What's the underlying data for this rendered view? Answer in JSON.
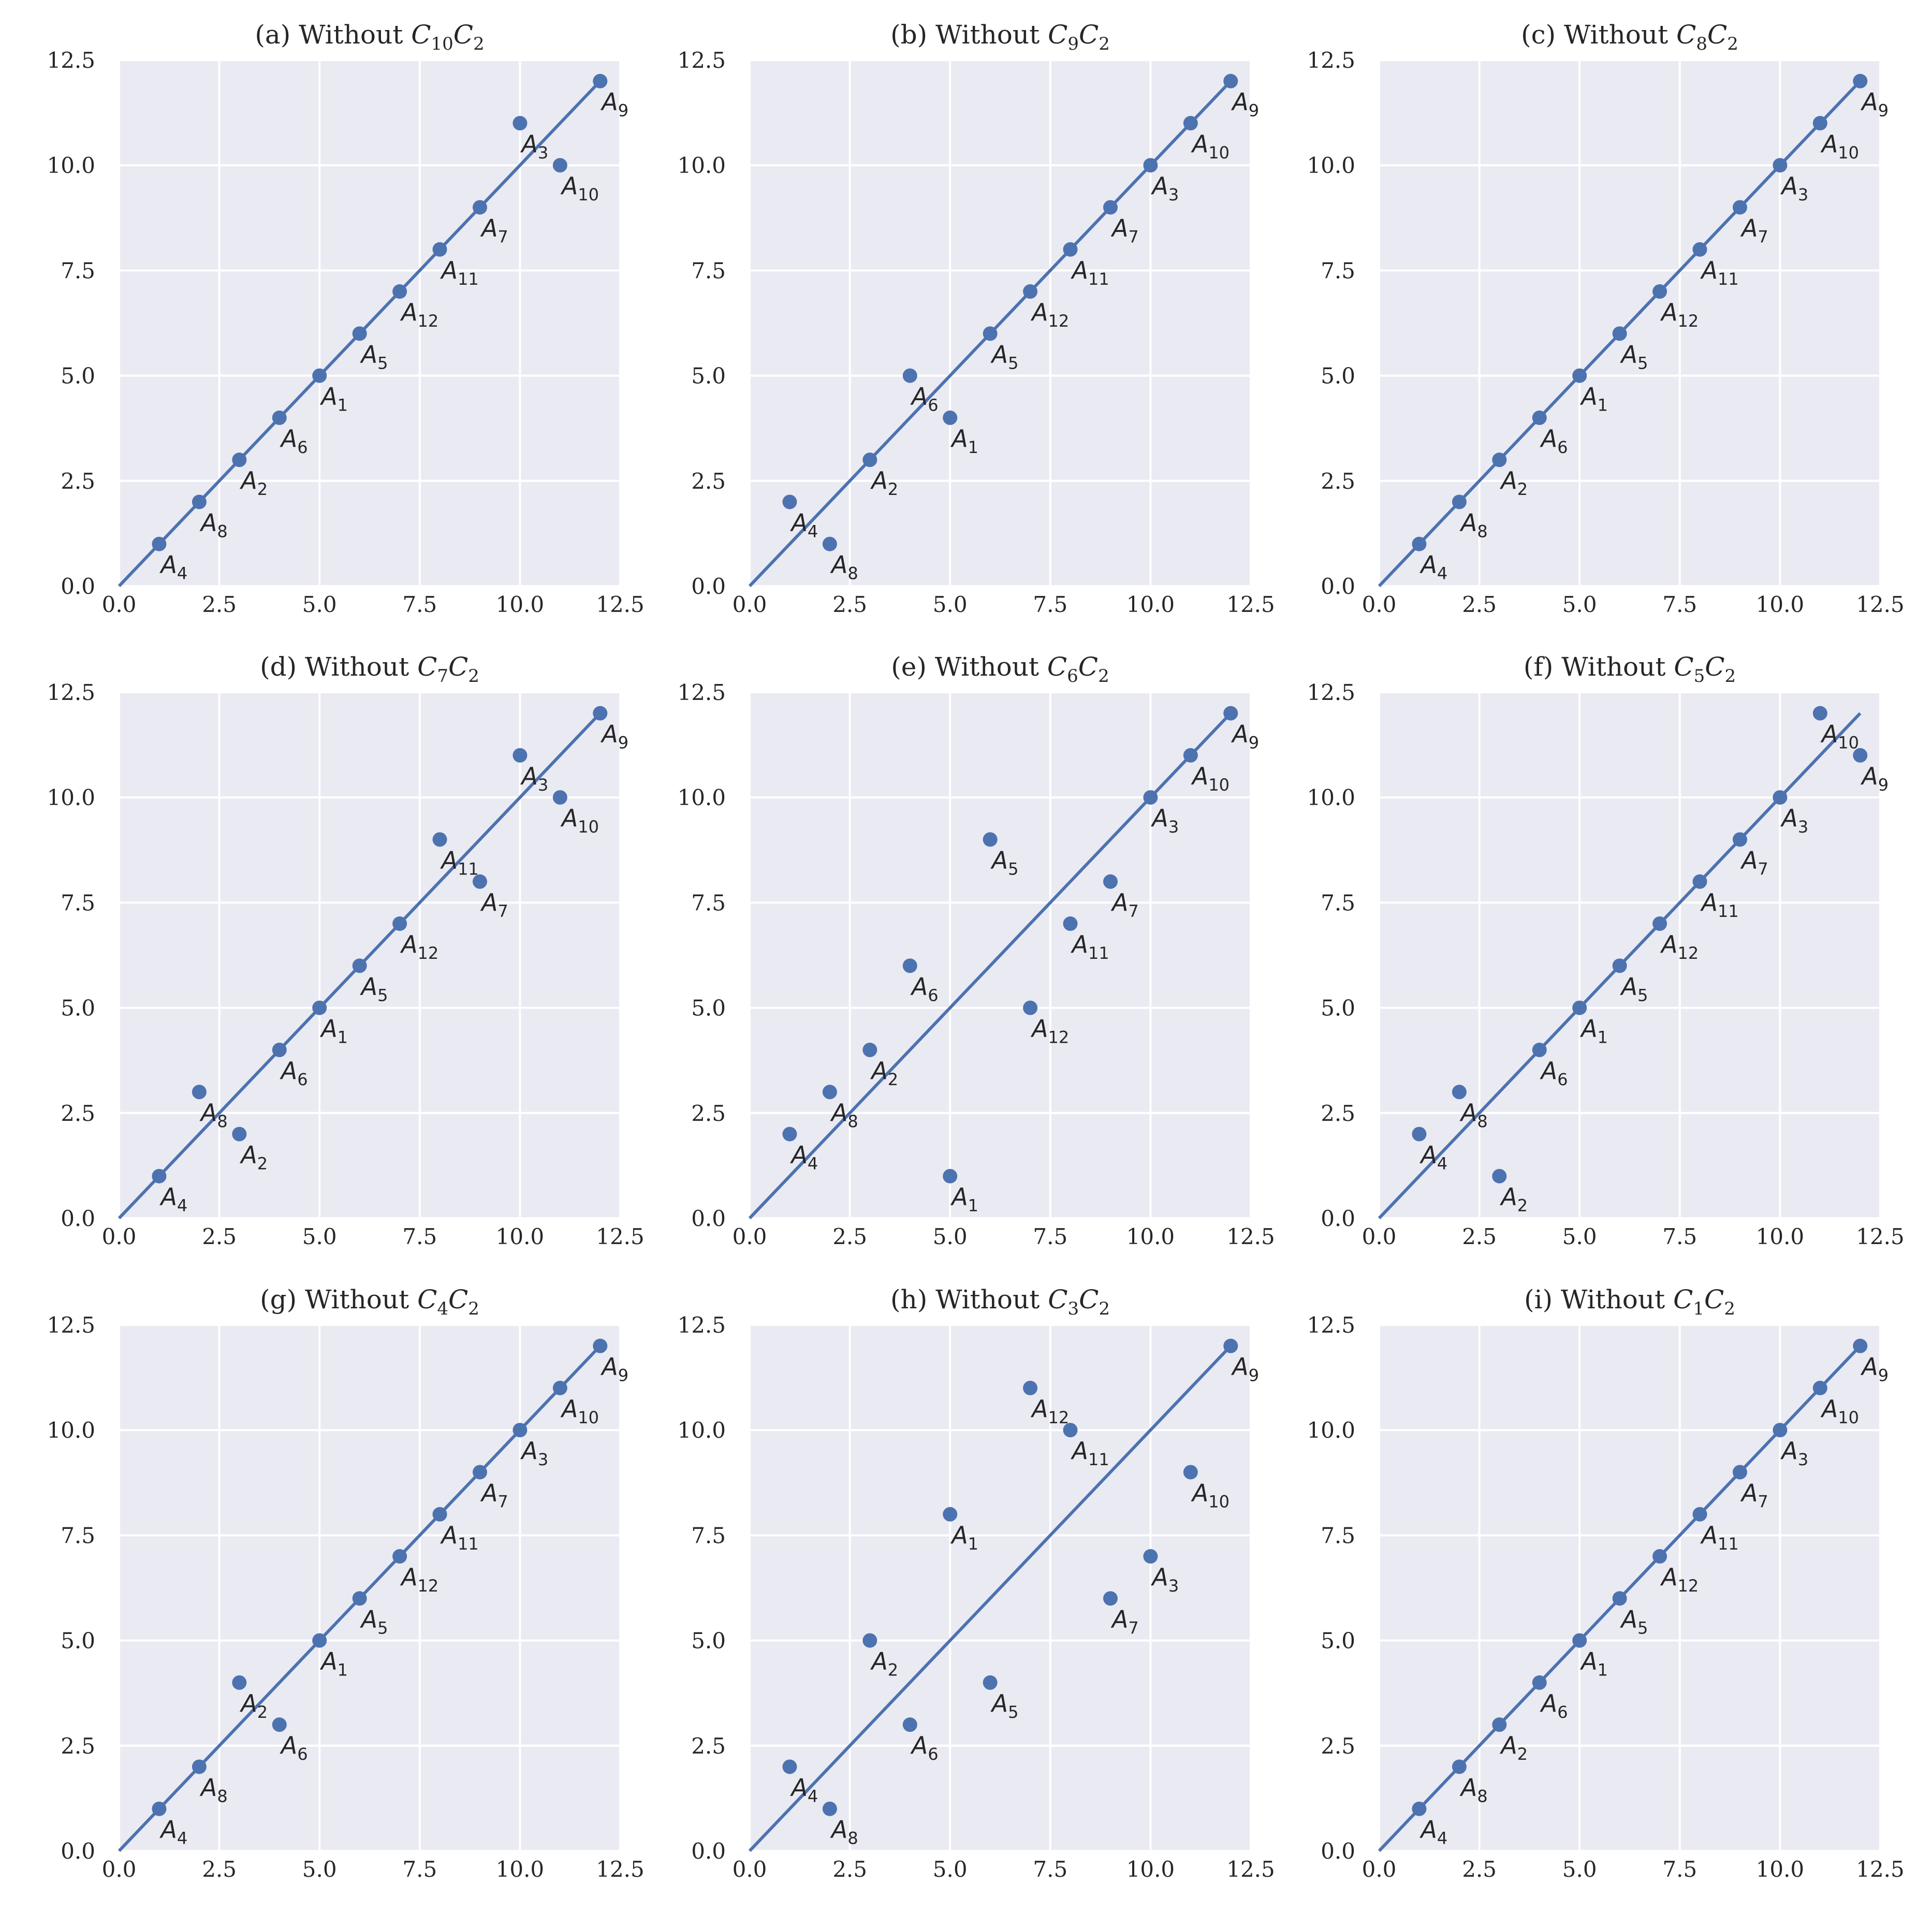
{
  "figure": {
    "panel_count": 9,
    "colors": {
      "plot_background": "#EAEAF2",
      "grid": "#FFFFFF",
      "marker": "#4C72B0",
      "line": "#4C72B0",
      "text": "#262626"
    }
  },
  "chart_data": [
    {
      "type": "scatter",
      "title": {
        "prefix": "(a) Without ",
        "var1": "C",
        "sub1": "10",
        "var2": "C",
        "sub2": "2"
      },
      "xlim": [
        0,
        12.5
      ],
      "ylim": [
        0,
        12.5
      ],
      "xticks": [
        "0.0",
        "2.5",
        "5.0",
        "7.5",
        "10.0",
        "12.5"
      ],
      "yticks": [
        "0.0",
        "2.5",
        "5.0",
        "7.5",
        "10.0",
        "12.5"
      ],
      "grid": true,
      "reference_line": {
        "from": [
          0,
          0
        ],
        "to": [
          12,
          12
        ]
      },
      "points": [
        {
          "label": "A",
          "sub": "4",
          "x": 1,
          "y": 1
        },
        {
          "label": "A",
          "sub": "8",
          "x": 2,
          "y": 2
        },
        {
          "label": "A",
          "sub": "2",
          "x": 3,
          "y": 3
        },
        {
          "label": "A",
          "sub": "6",
          "x": 4,
          "y": 4
        },
        {
          "label": "A",
          "sub": "1",
          "x": 5,
          "y": 5
        },
        {
          "label": "A",
          "sub": "5",
          "x": 6,
          "y": 6
        },
        {
          "label": "A",
          "sub": "12",
          "x": 7,
          "y": 7
        },
        {
          "label": "A",
          "sub": "11",
          "x": 8,
          "y": 8
        },
        {
          "label": "A",
          "sub": "7",
          "x": 9,
          "y": 9
        },
        {
          "label": "A",
          "sub": "3",
          "x": 10,
          "y": 11
        },
        {
          "label": "A",
          "sub": "10",
          "x": 11,
          "y": 10
        },
        {
          "label": "A",
          "sub": "9",
          "x": 12,
          "y": 12
        }
      ]
    },
    {
      "type": "scatter",
      "title": {
        "prefix": "(b) Without ",
        "var1": "C",
        "sub1": "9",
        "var2": "C",
        "sub2": "2"
      },
      "xlim": [
        0,
        12.5
      ],
      "ylim": [
        0,
        12.5
      ],
      "xticks": [
        "0.0",
        "2.5",
        "5.0",
        "7.5",
        "10.0",
        "12.5"
      ],
      "yticks": [
        "0.0",
        "2.5",
        "5.0",
        "7.5",
        "10.0",
        "12.5"
      ],
      "grid": true,
      "reference_line": {
        "from": [
          0,
          0
        ],
        "to": [
          12,
          12
        ]
      },
      "points": [
        {
          "label": "A",
          "sub": "4",
          "x": 1,
          "y": 2
        },
        {
          "label": "A",
          "sub": "8",
          "x": 2,
          "y": 1
        },
        {
          "label": "A",
          "sub": "2",
          "x": 3,
          "y": 3
        },
        {
          "label": "A",
          "sub": "6",
          "x": 4,
          "y": 5
        },
        {
          "label": "A",
          "sub": "1",
          "x": 5,
          "y": 4
        },
        {
          "label": "A",
          "sub": "5",
          "x": 6,
          "y": 6
        },
        {
          "label": "A",
          "sub": "12",
          "x": 7,
          "y": 7
        },
        {
          "label": "A",
          "sub": "11",
          "x": 8,
          "y": 8
        },
        {
          "label": "A",
          "sub": "7",
          "x": 9,
          "y": 9
        },
        {
          "label": "A",
          "sub": "3",
          "x": 10,
          "y": 10
        },
        {
          "label": "A",
          "sub": "10",
          "x": 11,
          "y": 11
        },
        {
          "label": "A",
          "sub": "9",
          "x": 12,
          "y": 12
        }
      ]
    },
    {
      "type": "scatter",
      "title": {
        "prefix": "(c) Without ",
        "var1": "C",
        "sub1": "8",
        "var2": "C",
        "sub2": "2"
      },
      "xlim": [
        0,
        12.5
      ],
      "ylim": [
        0,
        12.5
      ],
      "xticks": [
        "0.0",
        "2.5",
        "5.0",
        "7.5",
        "10.0",
        "12.5"
      ],
      "yticks": [
        "0.0",
        "2.5",
        "5.0",
        "7.5",
        "10.0",
        "12.5"
      ],
      "grid": true,
      "reference_line": {
        "from": [
          0,
          0
        ],
        "to": [
          12,
          12
        ]
      },
      "points": [
        {
          "label": "A",
          "sub": "4",
          "x": 1,
          "y": 1
        },
        {
          "label": "A",
          "sub": "8",
          "x": 2,
          "y": 2
        },
        {
          "label": "A",
          "sub": "2",
          "x": 3,
          "y": 3
        },
        {
          "label": "A",
          "sub": "6",
          "x": 4,
          "y": 4
        },
        {
          "label": "A",
          "sub": "1",
          "x": 5,
          "y": 5
        },
        {
          "label": "A",
          "sub": "5",
          "x": 6,
          "y": 6
        },
        {
          "label": "A",
          "sub": "12",
          "x": 7,
          "y": 7
        },
        {
          "label": "A",
          "sub": "11",
          "x": 8,
          "y": 8
        },
        {
          "label": "A",
          "sub": "7",
          "x": 9,
          "y": 9
        },
        {
          "label": "A",
          "sub": "3",
          "x": 10,
          "y": 10
        },
        {
          "label": "A",
          "sub": "10",
          "x": 11,
          "y": 11
        },
        {
          "label": "A",
          "sub": "9",
          "x": 12,
          "y": 12
        }
      ]
    },
    {
      "type": "scatter",
      "title": {
        "prefix": "(d) Without ",
        "var1": "C",
        "sub1": "7",
        "var2": "C",
        "sub2": "2"
      },
      "xlim": [
        0,
        12.5
      ],
      "ylim": [
        0,
        12.5
      ],
      "xticks": [
        "0.0",
        "2.5",
        "5.0",
        "7.5",
        "10.0",
        "12.5"
      ],
      "yticks": [
        "0.0",
        "2.5",
        "5.0",
        "7.5",
        "10.0",
        "12.5"
      ],
      "grid": true,
      "reference_line": {
        "from": [
          0,
          0
        ],
        "to": [
          12,
          12
        ]
      },
      "points": [
        {
          "label": "A",
          "sub": "4",
          "x": 1,
          "y": 1
        },
        {
          "label": "A",
          "sub": "8",
          "x": 2,
          "y": 3
        },
        {
          "label": "A",
          "sub": "2",
          "x": 3,
          "y": 2
        },
        {
          "label": "A",
          "sub": "6",
          "x": 4,
          "y": 4
        },
        {
          "label": "A",
          "sub": "1",
          "x": 5,
          "y": 5
        },
        {
          "label": "A",
          "sub": "5",
          "x": 6,
          "y": 6
        },
        {
          "label": "A",
          "sub": "12",
          "x": 7,
          "y": 7
        },
        {
          "label": "A",
          "sub": "11",
          "x": 8,
          "y": 9
        },
        {
          "label": "A",
          "sub": "7",
          "x": 9,
          "y": 8
        },
        {
          "label": "A",
          "sub": "3",
          "x": 10,
          "y": 11
        },
        {
          "label": "A",
          "sub": "10",
          "x": 11,
          "y": 10
        },
        {
          "label": "A",
          "sub": "9",
          "x": 12,
          "y": 12
        }
      ]
    },
    {
      "type": "scatter",
      "title": {
        "prefix": "(e) Without ",
        "var1": "C",
        "sub1": "6",
        "var2": "C",
        "sub2": "2"
      },
      "xlim": [
        0,
        12.5
      ],
      "ylim": [
        0,
        12.5
      ],
      "xticks": [
        "0.0",
        "2.5",
        "5.0",
        "7.5",
        "10.0",
        "12.5"
      ],
      "yticks": [
        "0.0",
        "2.5",
        "5.0",
        "7.5",
        "10.0",
        "12.5"
      ],
      "grid": true,
      "reference_line": {
        "from": [
          0,
          0
        ],
        "to": [
          12,
          12
        ]
      },
      "points": [
        {
          "label": "A",
          "sub": "4",
          "x": 1,
          "y": 2
        },
        {
          "label": "A",
          "sub": "8",
          "x": 2,
          "y": 3
        },
        {
          "label": "A",
          "sub": "2",
          "x": 3,
          "y": 4
        },
        {
          "label": "A",
          "sub": "6",
          "x": 4,
          "y": 6
        },
        {
          "label": "A",
          "sub": "1",
          "x": 5,
          "y": 1
        },
        {
          "label": "A",
          "sub": "5",
          "x": 6,
          "y": 9
        },
        {
          "label": "A",
          "sub": "12",
          "x": 7,
          "y": 5
        },
        {
          "label": "A",
          "sub": "11",
          "x": 8,
          "y": 7
        },
        {
          "label": "A",
          "sub": "7",
          "x": 9,
          "y": 8
        },
        {
          "label": "A",
          "sub": "3",
          "x": 10,
          "y": 10
        },
        {
          "label": "A",
          "sub": "10",
          "x": 11,
          "y": 11
        },
        {
          "label": "A",
          "sub": "9",
          "x": 12,
          "y": 12
        }
      ]
    },
    {
      "type": "scatter",
      "title": {
        "prefix": "(f) Without ",
        "var1": "C",
        "sub1": "5",
        "var2": "C",
        "sub2": "2"
      },
      "xlim": [
        0,
        12.5
      ],
      "ylim": [
        0,
        12.5
      ],
      "xticks": [
        "0.0",
        "2.5",
        "5.0",
        "7.5",
        "10.0",
        "12.5"
      ],
      "yticks": [
        "0.0",
        "2.5",
        "5.0",
        "7.5",
        "10.0",
        "12.5"
      ],
      "grid": true,
      "reference_line": {
        "from": [
          0,
          0
        ],
        "to": [
          12,
          12
        ]
      },
      "points": [
        {
          "label": "A",
          "sub": "4",
          "x": 1,
          "y": 2
        },
        {
          "label": "A",
          "sub": "8",
          "x": 2,
          "y": 3
        },
        {
          "label": "A",
          "sub": "2",
          "x": 3,
          "y": 1
        },
        {
          "label": "A",
          "sub": "6",
          "x": 4,
          "y": 4
        },
        {
          "label": "A",
          "sub": "1",
          "x": 5,
          "y": 5
        },
        {
          "label": "A",
          "sub": "5",
          "x": 6,
          "y": 6
        },
        {
          "label": "A",
          "sub": "12",
          "x": 7,
          "y": 7
        },
        {
          "label": "A",
          "sub": "11",
          "x": 8,
          "y": 8
        },
        {
          "label": "A",
          "sub": "7",
          "x": 9,
          "y": 9
        },
        {
          "label": "A",
          "sub": "3",
          "x": 10,
          "y": 10
        },
        {
          "label": "A",
          "sub": "10",
          "x": 11,
          "y": 12
        },
        {
          "label": "A",
          "sub": "9",
          "x": 12,
          "y": 11
        }
      ]
    },
    {
      "type": "scatter",
      "title": {
        "prefix": "(g) Without ",
        "var1": "C",
        "sub1": "4",
        "var2": "C",
        "sub2": "2"
      },
      "xlim": [
        0,
        12.5
      ],
      "ylim": [
        0,
        12.5
      ],
      "xticks": [
        "0.0",
        "2.5",
        "5.0",
        "7.5",
        "10.0",
        "12.5"
      ],
      "yticks": [
        "0.0",
        "2.5",
        "5.0",
        "7.5",
        "10.0",
        "12.5"
      ],
      "grid": true,
      "reference_line": {
        "from": [
          0,
          0
        ],
        "to": [
          12,
          12
        ]
      },
      "points": [
        {
          "label": "A",
          "sub": "4",
          "x": 1,
          "y": 1
        },
        {
          "label": "A",
          "sub": "8",
          "x": 2,
          "y": 2
        },
        {
          "label": "A",
          "sub": "2",
          "x": 3,
          "y": 4
        },
        {
          "label": "A",
          "sub": "6",
          "x": 4,
          "y": 3
        },
        {
          "label": "A",
          "sub": "1",
          "x": 5,
          "y": 5
        },
        {
          "label": "A",
          "sub": "5",
          "x": 6,
          "y": 6
        },
        {
          "label": "A",
          "sub": "12",
          "x": 7,
          "y": 7
        },
        {
          "label": "A",
          "sub": "11",
          "x": 8,
          "y": 8
        },
        {
          "label": "A",
          "sub": "7",
          "x": 9,
          "y": 9
        },
        {
          "label": "A",
          "sub": "3",
          "x": 10,
          "y": 10
        },
        {
          "label": "A",
          "sub": "10",
          "x": 11,
          "y": 11
        },
        {
          "label": "A",
          "sub": "9",
          "x": 12,
          "y": 12
        }
      ]
    },
    {
      "type": "scatter",
      "title": {
        "prefix": "(h) Without ",
        "var1": "C",
        "sub1": "3",
        "var2": "C",
        "sub2": "2"
      },
      "xlim": [
        0,
        12.5
      ],
      "ylim": [
        0,
        12.5
      ],
      "xticks": [
        "0.0",
        "2.5",
        "5.0",
        "7.5",
        "10.0",
        "12.5"
      ],
      "yticks": [
        "0.0",
        "2.5",
        "5.0",
        "7.5",
        "10.0",
        "12.5"
      ],
      "grid": true,
      "reference_line": {
        "from": [
          0,
          0
        ],
        "to": [
          12,
          12
        ]
      },
      "points": [
        {
          "label": "A",
          "sub": "4",
          "x": 1,
          "y": 2
        },
        {
          "label": "A",
          "sub": "8",
          "x": 2,
          "y": 1
        },
        {
          "label": "A",
          "sub": "2",
          "x": 3,
          "y": 5
        },
        {
          "label": "A",
          "sub": "6",
          "x": 4,
          "y": 3
        },
        {
          "label": "A",
          "sub": "1",
          "x": 5,
          "y": 8
        },
        {
          "label": "A",
          "sub": "5",
          "x": 6,
          "y": 4
        },
        {
          "label": "A",
          "sub": "12",
          "x": 7,
          "y": 11
        },
        {
          "label": "A",
          "sub": "11",
          "x": 8,
          "y": 10
        },
        {
          "label": "A",
          "sub": "7",
          "x": 9,
          "y": 6
        },
        {
          "label": "A",
          "sub": "3",
          "x": 10,
          "y": 7
        },
        {
          "label": "A",
          "sub": "10",
          "x": 11,
          "y": 9
        },
        {
          "label": "A",
          "sub": "9",
          "x": 12,
          "y": 12
        }
      ]
    },
    {
      "type": "scatter",
      "title": {
        "prefix": "(i) Without ",
        "var1": "C",
        "sub1": "1",
        "var2": "C",
        "sub2": "2"
      },
      "xlim": [
        0,
        12.5
      ],
      "ylim": [
        0,
        12.5
      ],
      "xticks": [
        "0.0",
        "2.5",
        "5.0",
        "7.5",
        "10.0",
        "12.5"
      ],
      "yticks": [
        "0.0",
        "2.5",
        "5.0",
        "7.5",
        "10.0",
        "12.5"
      ],
      "grid": true,
      "reference_line": {
        "from": [
          0,
          0
        ],
        "to": [
          12,
          12
        ]
      },
      "points": [
        {
          "label": "A",
          "sub": "4",
          "x": 1,
          "y": 1
        },
        {
          "label": "A",
          "sub": "8",
          "x": 2,
          "y": 2
        },
        {
          "label": "A",
          "sub": "2",
          "x": 3,
          "y": 3
        },
        {
          "label": "A",
          "sub": "6",
          "x": 4,
          "y": 4
        },
        {
          "label": "A",
          "sub": "1",
          "x": 5,
          "y": 5
        },
        {
          "label": "A",
          "sub": "5",
          "x": 6,
          "y": 6
        },
        {
          "label": "A",
          "sub": "12",
          "x": 7,
          "y": 7
        },
        {
          "label": "A",
          "sub": "11",
          "x": 8,
          "y": 8
        },
        {
          "label": "A",
          "sub": "7",
          "x": 9,
          "y": 9
        },
        {
          "label": "A",
          "sub": "3",
          "x": 10,
          "y": 10
        },
        {
          "label": "A",
          "sub": "10",
          "x": 11,
          "y": 11
        },
        {
          "label": "A",
          "sub": "9",
          "x": 12,
          "y": 12
        }
      ]
    }
  ]
}
